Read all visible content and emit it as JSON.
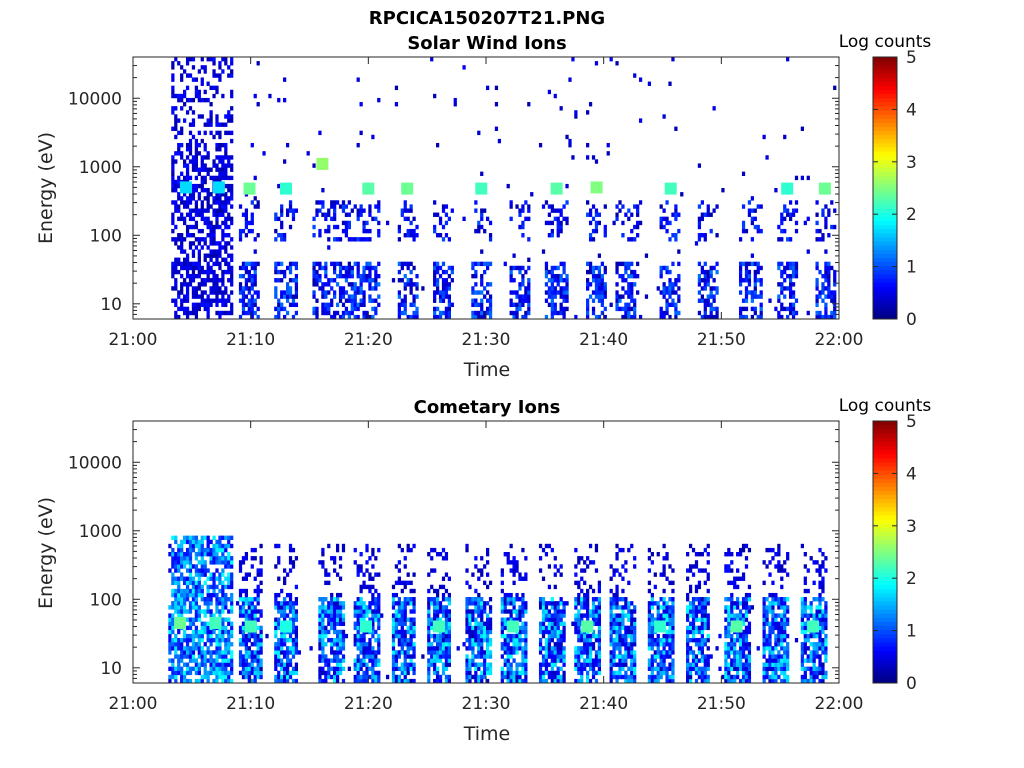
{
  "figure_title": "RPCICA150207T21.PNG",
  "chart_data": [
    {
      "type": "heatmap",
      "title": "Solar Wind Ions",
      "xlabel": "Time",
      "ylabel": "Energy (eV)",
      "y_scale": "log",
      "ylim": [
        6,
        40000
      ],
      "xlim": [
        "21:00",
        "22:00"
      ],
      "x_ticks": [
        "21:00",
        "21:10",
        "21:20",
        "21:30",
        "21:40",
        "21:50",
        "22:00"
      ],
      "y_ticks": [
        {
          "value": 10,
          "label": "10"
        },
        {
          "value": 100,
          "label": "100"
        },
        {
          "value": 1000,
          "label": "1000"
        },
        {
          "value": 10000,
          "label": "10000"
        }
      ],
      "colorbar": {
        "label": "Log counts",
        "min": 0,
        "max": 5,
        "ticks": [
          "0",
          "1",
          "2",
          "3",
          "4",
          "5"
        ],
        "colormap": "jet"
      },
      "grid": false,
      "burst_minutes": [
        4.3,
        7.0,
        9.9,
        13.0,
        16.1,
        18.0,
        20.0,
        23.3,
        26.3,
        29.6,
        32.9,
        36.0,
        39.4,
        42.0,
        45.7,
        48.8,
        52.5,
        55.6,
        58.8
      ],
      "pattern": [
        {
          "minute": 4.5,
          "energy_ev": 500,
          "log_counts": 1.7
        },
        {
          "minute": 7.3,
          "energy_ev": 500,
          "log_counts": 1.7
        },
        {
          "minute": 9.9,
          "energy_ev": 480,
          "log_counts": 2.4
        },
        {
          "minute": 13.0,
          "energy_ev": 480,
          "log_counts": 2.1
        },
        {
          "minute": 16.1,
          "energy_ev": 1100,
          "log_counts": 2.6
        },
        {
          "minute": 20.0,
          "energy_ev": 480,
          "log_counts": 2.3
        },
        {
          "minute": 23.3,
          "energy_ev": 480,
          "log_counts": 2.4
        },
        {
          "minute": 29.6,
          "energy_ev": 480,
          "log_counts": 2.2
        },
        {
          "minute": 36.0,
          "energy_ev": 480,
          "log_counts": 2.3
        },
        {
          "minute": 39.4,
          "energy_ev": 500,
          "log_counts": 2.5
        },
        {
          "minute": 45.7,
          "energy_ev": 480,
          "log_counts": 2.2
        },
        {
          "minute": 55.6,
          "energy_ev": 480,
          "log_counts": 2.1
        },
        {
          "minute": 58.8,
          "energy_ev": 480,
          "log_counts": 2.4
        }
      ]
    },
    {
      "type": "heatmap",
      "title": "Cometary Ions",
      "xlabel": "Time",
      "ylabel": "Energy (eV)",
      "y_scale": "log",
      "ylim": [
        6,
        40000
      ],
      "xlim": [
        "21:00",
        "22:00"
      ],
      "x_ticks": [
        "21:00",
        "21:10",
        "21:20",
        "21:30",
        "21:40",
        "21:50",
        "22:00"
      ],
      "y_ticks": [
        {
          "value": 10,
          "label": "10"
        },
        {
          "value": 100,
          "label": "100"
        },
        {
          "value": 1000,
          "label": "1000"
        },
        {
          "value": 10000,
          "label": "10000"
        }
      ],
      "colorbar": {
        "label": "Log counts",
        "min": 0,
        "max": 5,
        "ticks": [
          "0",
          "1",
          "2",
          "3",
          "4",
          "5"
        ],
        "colormap": "jet"
      },
      "grid": false,
      "burst_minutes": [
        4.0,
        7.0,
        10.0,
        13.0,
        16.8,
        19.8,
        23.0,
        26.0,
        29.3,
        32.3,
        35.6,
        38.6,
        41.7,
        44.8,
        48.0,
        51.3,
        54.6,
        57.8
      ],
      "pattern": [
        {
          "minute": 4.0,
          "energy_ev": 45,
          "log_counts": 2.4
        },
        {
          "minute": 7.0,
          "energy_ev": 45,
          "log_counts": 2.2
        },
        {
          "minute": 10.0,
          "energy_ev": 40,
          "log_counts": 2.2
        },
        {
          "minute": 13.0,
          "energy_ev": 40,
          "log_counts": 2.0
        },
        {
          "minute": 19.8,
          "energy_ev": 40,
          "log_counts": 2.1
        },
        {
          "minute": 26.0,
          "energy_ev": 40,
          "log_counts": 2.2
        },
        {
          "minute": 32.3,
          "energy_ev": 40,
          "log_counts": 2.2
        },
        {
          "minute": 38.6,
          "energy_ev": 40,
          "log_counts": 2.3
        },
        {
          "minute": 44.8,
          "energy_ev": 40,
          "log_counts": 2.1
        },
        {
          "minute": 51.3,
          "energy_ev": 40,
          "log_counts": 2.3
        },
        {
          "minute": 57.8,
          "energy_ev": 40,
          "log_counts": 2.2
        }
      ]
    }
  ]
}
